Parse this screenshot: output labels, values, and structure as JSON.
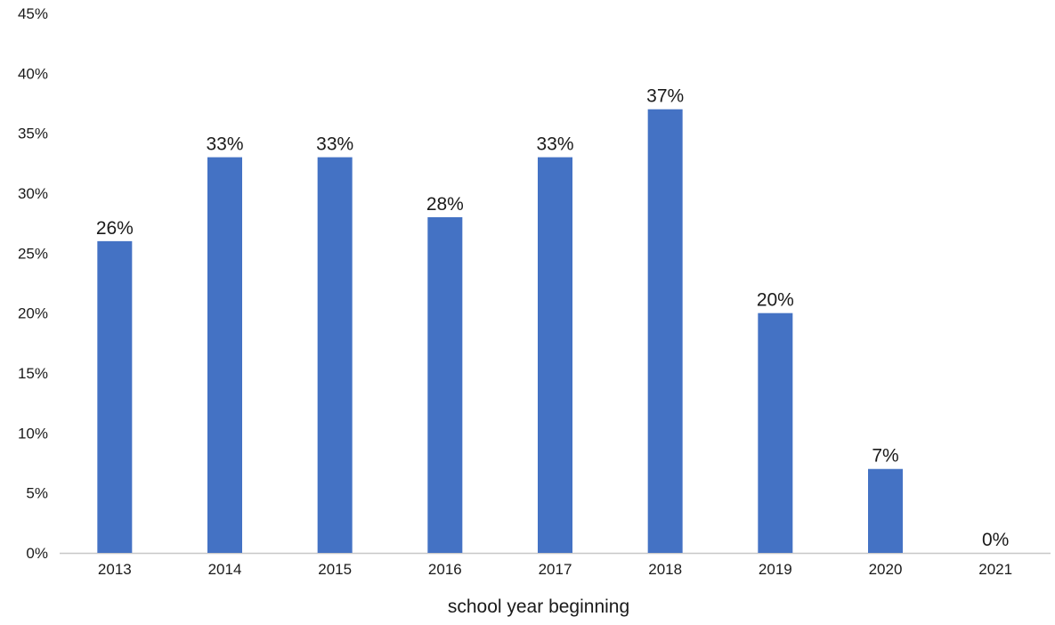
{
  "chart_data": {
    "type": "bar",
    "categories": [
      "2013",
      "2014",
      "2015",
      "2016",
      "2017",
      "2018",
      "2019",
      "2020",
      "2021"
    ],
    "values": [
      26,
      33,
      33,
      28,
      33,
      37,
      20,
      7,
      0
    ],
    "data_labels": [
      "26%",
      "33%",
      "33%",
      "28%",
      "33%",
      "37%",
      "20%",
      "7%",
      "0%"
    ],
    "title": "",
    "xlabel": "school year beginning",
    "ylabel": "",
    "ylim": [
      0,
      45
    ],
    "y_ticks": [
      0,
      5,
      10,
      15,
      20,
      25,
      30,
      35,
      40,
      45
    ],
    "y_tick_labels": [
      "0%",
      "5%",
      "10%",
      "15%",
      "20%",
      "25%",
      "30%",
      "35%",
      "40%",
      "45%"
    ],
    "grid": false,
    "legend": "none",
    "colors": {
      "bar": "#4472c4",
      "axis": "#c8c8c8",
      "text": "#1a1a1a"
    }
  }
}
